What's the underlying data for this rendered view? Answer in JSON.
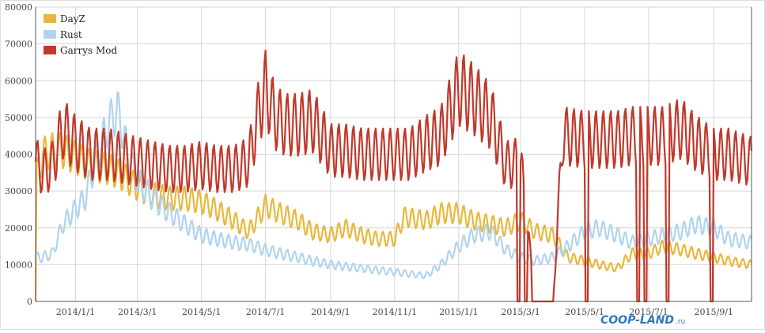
{
  "chart_data": {
    "type": "line",
    "title": "",
    "xlabel": "",
    "ylabel": "",
    "ylim": [
      0,
      80000
    ],
    "xlim": [
      "2013-11-24",
      "2015-10-07"
    ],
    "grid": true,
    "legend_position": "top-left",
    "y_ticks": [
      "0",
      "10000",
      "20000",
      "30000",
      "40000",
      "50000",
      "60000",
      "70000",
      "80000"
    ],
    "x_ticks": [
      {
        "date": "2014-01-01",
        "label": "2014/1/1"
      },
      {
        "date": "2014-03-01",
        "label": "2014/3/1"
      },
      {
        "date": "2014-05-01",
        "label": "2014/5/1"
      },
      {
        "date": "2014-07-01",
        "label": "2014/7/1"
      },
      {
        "date": "2014-09-01",
        "label": "2014/9/1"
      },
      {
        "date": "2014-11-01",
        "label": "2014/11/1"
      },
      {
        "date": "2015-01-01",
        "label": "2015/1/1"
      },
      {
        "date": "2015-03-01",
        "label": "2015/3/1"
      },
      {
        "date": "2015-05-01",
        "label": "2015/5/1"
      },
      {
        "date": "2015-07-01",
        "label": "2015/7/1"
      },
      {
        "date": "2015-09-01",
        "label": "2015/9/1"
      }
    ],
    "weekly_oscillation": true,
    "series": [
      {
        "name": "DayZ",
        "color": "#e8b83e",
        "amplitude_fraction": 0.12,
        "points": [
          [
            "2013-11-24",
            0
          ],
          [
            "2013-11-25",
            34000
          ],
          [
            "2013-12-01",
            40000
          ],
          [
            "2013-12-10",
            41000
          ],
          [
            "2013-12-20",
            41000
          ],
          [
            "2014-01-01",
            39000
          ],
          [
            "2014-01-15",
            37000
          ],
          [
            "2014-02-01",
            36000
          ],
          [
            "2014-02-15",
            34000
          ],
          [
            "2014-03-01",
            31000
          ],
          [
            "2014-03-15",
            29000
          ],
          [
            "2014-04-01",
            28000
          ],
          [
            "2014-04-15",
            28000
          ],
          [
            "2014-05-01",
            27000
          ],
          [
            "2014-05-15",
            25000
          ],
          [
            "2014-06-01",
            22000
          ],
          [
            "2014-06-15",
            19000
          ],
          [
            "2014-07-01",
            26000
          ],
          [
            "2014-07-15",
            24000
          ],
          [
            "2014-08-01",
            22000
          ],
          [
            "2014-08-15",
            19000
          ],
          [
            "2014-09-01",
            18000
          ],
          [
            "2014-09-15",
            20000
          ],
          [
            "2014-10-01",
            18000
          ],
          [
            "2014-10-15",
            17000
          ],
          [
            "2014-11-01",
            17000
          ],
          [
            "2014-11-10",
            23000
          ],
          [
            "2014-12-01",
            22000
          ],
          [
            "2014-12-15",
            24000
          ],
          [
            "2015-01-01",
            24000
          ],
          [
            "2015-01-15",
            22000
          ],
          [
            "2015-02-01",
            21000
          ],
          [
            "2015-02-15",
            20000
          ],
          [
            "2015-03-01",
            22000
          ],
          [
            "2015-03-15",
            19000
          ],
          [
            "2015-04-01",
            18000
          ],
          [
            "2015-04-15",
            12000
          ],
          [
            "2015-05-01",
            11000
          ],
          [
            "2015-05-15",
            10000
          ],
          [
            "2015-06-01",
            9000
          ],
          [
            "2015-06-15",
            13000
          ],
          [
            "2015-07-01",
            13000
          ],
          [
            "2015-07-15",
            15000
          ],
          [
            "2015-08-01",
            14000
          ],
          [
            "2015-08-15",
            13000
          ],
          [
            "2015-09-01",
            12000
          ],
          [
            "2015-09-15",
            11000
          ],
          [
            "2015-10-07",
            10000
          ]
        ]
      },
      {
        "name": "Rust",
        "color": "#b0d4f0",
        "amplitude_fraction": 0.12,
        "points": [
          [
            "2013-11-24",
            12000
          ],
          [
            "2013-12-01",
            12000
          ],
          [
            "2013-12-10",
            13000
          ],
          [
            "2013-12-20",
            21000
          ],
          [
            "2014-01-01",
            25000
          ],
          [
            "2014-01-10",
            28000
          ],
          [
            "2014-01-20",
            38000
          ],
          [
            "2014-02-01",
            48000
          ],
          [
            "2014-02-10",
            52000
          ],
          [
            "2014-02-20",
            40000
          ],
          [
            "2014-03-01",
            33000
          ],
          [
            "2014-03-15",
            28000
          ],
          [
            "2014-04-01",
            24000
          ],
          [
            "2014-04-15",
            21000
          ],
          [
            "2014-05-01",
            18000
          ],
          [
            "2014-05-15",
            17000
          ],
          [
            "2014-06-01",
            16000
          ],
          [
            "2014-06-15",
            15500
          ],
          [
            "2014-07-01",
            14000
          ],
          [
            "2014-07-15",
            13000
          ],
          [
            "2014-08-01",
            12000
          ],
          [
            "2014-08-15",
            11000
          ],
          [
            "2014-09-01",
            10000
          ],
          [
            "2014-09-15",
            9500
          ],
          [
            "2014-10-01",
            9000
          ],
          [
            "2014-10-15",
            8500
          ],
          [
            "2014-11-01",
            8000
          ],
          [
            "2014-11-15",
            7500
          ],
          [
            "2014-12-01",
            7000
          ],
          [
            "2014-12-15",
            10000
          ],
          [
            "2015-01-01",
            15000
          ],
          [
            "2015-01-15",
            18000
          ],
          [
            "2015-02-01",
            19000
          ],
          [
            "2015-02-15",
            14000
          ],
          [
            "2015-03-01",
            12000
          ],
          [
            "2015-03-15",
            11000
          ],
          [
            "2015-04-01",
            12000
          ],
          [
            "2015-04-15",
            15000
          ],
          [
            "2015-05-01",
            19000
          ],
          [
            "2015-05-15",
            20000
          ],
          [
            "2015-06-01",
            18000
          ],
          [
            "2015-06-15",
            16000
          ],
          [
            "2015-07-01",
            17000
          ],
          [
            "2015-07-15",
            18000
          ],
          [
            "2015-08-01",
            19000
          ],
          [
            "2015-08-15",
            21000
          ],
          [
            "2015-09-01",
            20000
          ],
          [
            "2015-09-15",
            17000
          ],
          [
            "2015-10-07",
            16000
          ]
        ]
      },
      {
        "name": "Garrys Mod",
        "color": "#c0392b",
        "amplitude_fraction": 0.18,
        "points": [
          [
            "2013-11-24",
            38000
          ],
          [
            "2013-12-01",
            35000
          ],
          [
            "2013-12-10",
            37000
          ],
          [
            "2013-12-20",
            47000
          ],
          [
            "2014-01-01",
            43000
          ],
          [
            "2014-01-15",
            40000
          ],
          [
            "2014-02-01",
            40000
          ],
          [
            "2014-02-15",
            39000
          ],
          [
            "2014-03-01",
            38000
          ],
          [
            "2014-03-15",
            37000
          ],
          [
            "2014-04-01",
            36000
          ],
          [
            "2014-04-15",
            36000
          ],
          [
            "2014-05-01",
            37000
          ],
          [
            "2014-05-15",
            36000
          ],
          [
            "2014-06-01",
            36000
          ],
          [
            "2014-06-15",
            38000
          ],
          [
            "2014-06-25",
            52000
          ],
          [
            "2014-07-01",
            58000
          ],
          [
            "2014-07-10",
            50000
          ],
          [
            "2014-07-20",
            48000
          ],
          [
            "2014-08-01",
            48000
          ],
          [
            "2014-08-15",
            49000
          ],
          [
            "2014-09-01",
            41000
          ],
          [
            "2014-09-15",
            41000
          ],
          [
            "2014-10-01",
            40000
          ],
          [
            "2014-10-15",
            40000
          ],
          [
            "2014-11-01",
            40000
          ],
          [
            "2014-11-15",
            40000
          ],
          [
            "2014-12-01",
            43000
          ],
          [
            "2014-12-15",
            45000
          ],
          [
            "2015-01-01",
            58000
          ],
          [
            "2015-01-15",
            55000
          ],
          [
            "2015-02-01",
            50000
          ],
          [
            "2015-02-15",
            37000
          ],
          [
            "2015-03-01",
            38000
          ],
          [
            "2015-03-15",
            0
          ],
          [
            "2015-04-01",
            0
          ],
          [
            "2015-04-10",
            45000
          ],
          [
            "2015-05-01",
            44000
          ],
          [
            "2015-05-15",
            44000
          ],
          [
            "2015-06-01",
            44000
          ],
          [
            "2015-06-15",
            45000
          ],
          [
            "2015-07-01",
            45000
          ],
          [
            "2015-07-15",
            45000
          ],
          [
            "2015-08-01",
            47000
          ],
          [
            "2015-08-15",
            43000
          ],
          [
            "2015-09-01",
            40000
          ],
          [
            "2015-09-15",
            40000
          ],
          [
            "2015-10-07",
            38000
          ]
        ],
        "gaps": [
          [
            "2015-02-26",
            "2015-02-28"
          ],
          [
            "2015-03-05",
            "2015-03-07"
          ],
          [
            "2015-03-12",
            "2015-03-14"
          ],
          [
            "2015-05-02",
            "2015-05-04"
          ],
          [
            "2015-06-20",
            "2015-06-22"
          ],
          [
            "2015-06-27",
            "2015-06-29"
          ],
          [
            "2015-07-18",
            "2015-07-20"
          ],
          [
            "2015-08-29",
            "2015-08-31"
          ]
        ]
      }
    ]
  },
  "watermark": {
    "text": "COOP-LAND",
    "suffix": ".ru"
  }
}
